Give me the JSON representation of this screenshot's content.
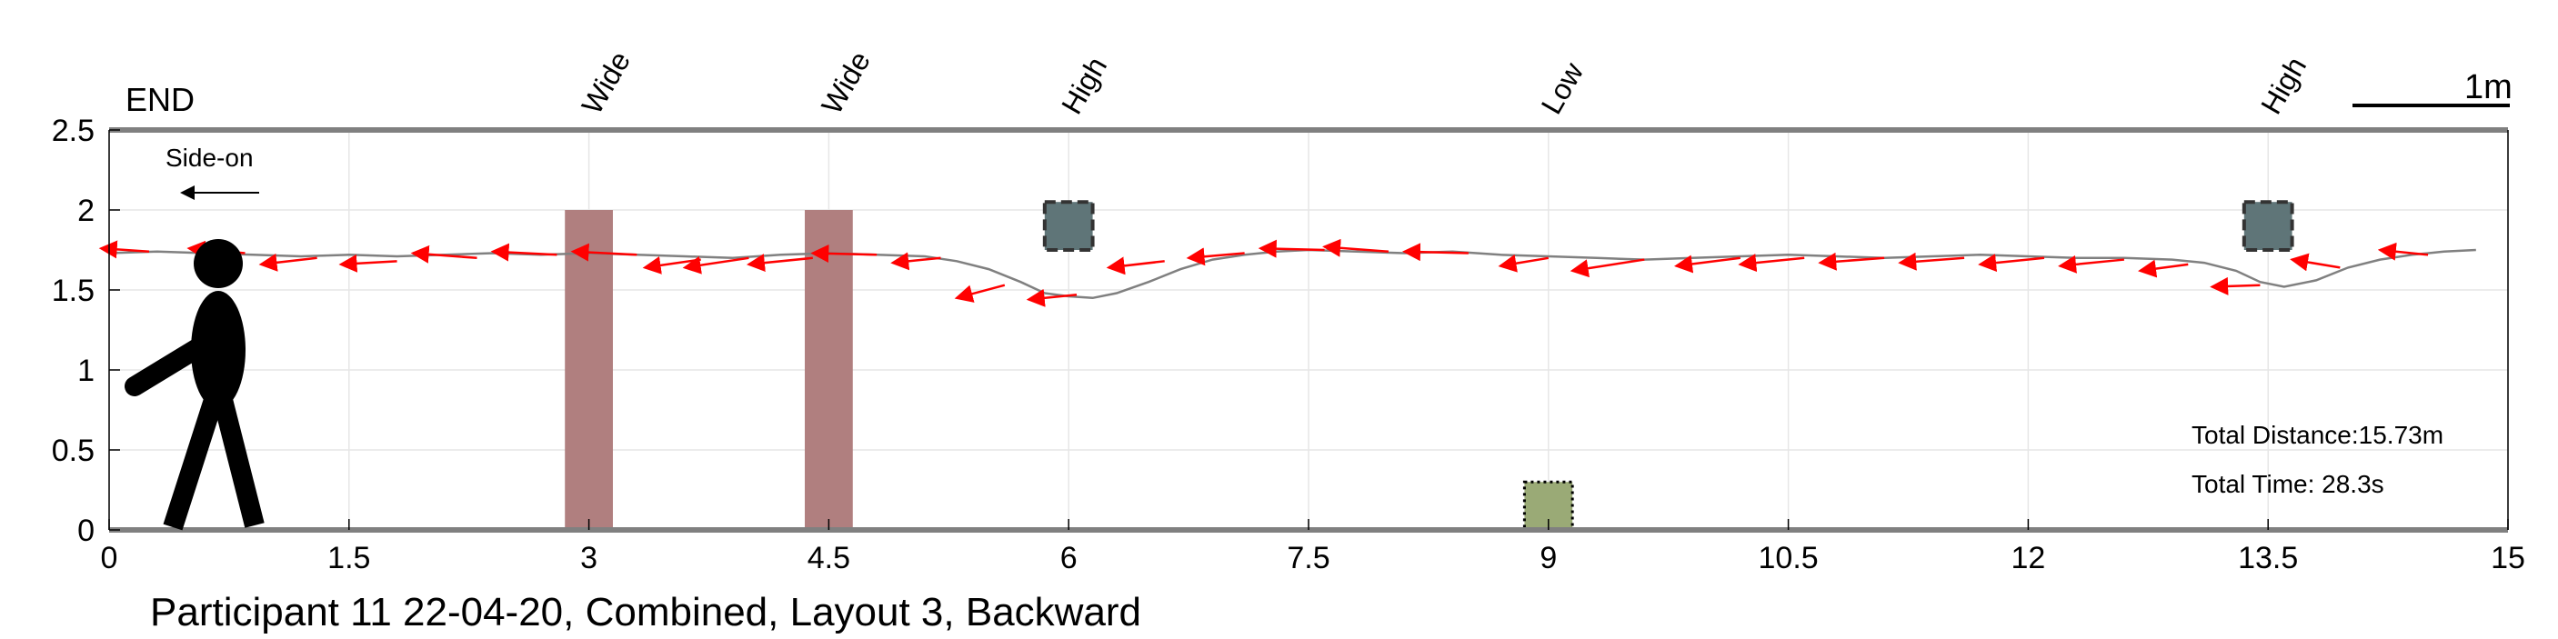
{
  "chart_data": {
    "type": "line",
    "title": "Participant 11 22-04-20, Combined, Layout 3, Backward",
    "xlabel": "",
    "ylabel": "",
    "xlim": [
      0,
      15
    ],
    "ylim": [
      0,
      2.5
    ],
    "x_ticks": [
      0,
      1.5,
      3,
      4.5,
      6,
      7.5,
      9,
      10.5,
      12,
      13.5,
      15
    ],
    "x_tick_labels": [
      "0",
      "1.5",
      "3",
      "4.5",
      "6",
      "7.5",
      "9",
      "10.5",
      "12",
      "13.5",
      "15"
    ],
    "y_ticks": [
      0,
      0.5,
      1,
      1.5,
      2,
      2.5
    ],
    "y_tick_labels": [
      "0",
      "0.5",
      "1",
      "1.5",
      "2",
      "2.5"
    ],
    "grid": true,
    "end_label": "END",
    "view_label": "Side-on",
    "scale_bar_label": "1m",
    "total_distance": "Total Distance:15.73m",
    "total_time": "Total Time: 28.3s",
    "obstacles": [
      {
        "label": "Wide",
        "x": 3.0,
        "type": "wide",
        "x0": 2.85,
        "x1": 3.15,
        "y0": 0,
        "y1": 2.0,
        "color": "#b07f7f"
      },
      {
        "label": "Wide",
        "x": 4.5,
        "type": "wide",
        "x0": 4.35,
        "x1": 4.65,
        "y0": 0,
        "y1": 2.0,
        "color": "#b07f7f"
      },
      {
        "label": "High",
        "x": 6.0,
        "type": "high",
        "x0": 5.85,
        "x1": 6.15,
        "y0": 1.75,
        "y1": 2.05,
        "color": "#5f7578"
      },
      {
        "label": "Low",
        "x": 9.0,
        "type": "low",
        "x0": 8.85,
        "x1": 9.15,
        "y0": 0,
        "y1": 0.3,
        "color": "#9aaa76"
      },
      {
        "label": "High",
        "x": 13.5,
        "type": "high",
        "x0": 13.35,
        "x1": 13.65,
        "y0": 1.75,
        "y1": 2.05,
        "color": "#5f7578"
      }
    ],
    "series": [
      {
        "x": [
          0,
          0.3,
          0.6,
          0.9,
          1.2,
          1.5,
          1.8,
          2.1,
          2.4,
          2.7,
          3.0,
          3.3,
          3.6,
          3.9,
          4.2,
          4.5,
          4.8,
          5.1,
          5.3,
          5.5,
          5.7,
          5.85,
          6.0,
          6.15,
          6.3,
          6.5,
          6.7,
          6.9,
          7.1,
          7.3,
          7.5,
          7.8,
          8.1,
          8.4,
          8.7,
          9.0,
          9.3,
          9.6,
          9.9,
          10.2,
          10.5,
          10.8,
          11.1,
          11.4,
          11.7,
          12.0,
          12.3,
          12.6,
          12.9,
          13.1,
          13.3,
          13.45,
          13.6,
          13.8,
          14.0,
          14.2,
          14.4,
          14.6,
          14.8
        ],
        "y": [
          1.73,
          1.74,
          1.73,
          1.72,
          1.71,
          1.72,
          1.71,
          1.72,
          1.73,
          1.72,
          1.73,
          1.72,
          1.71,
          1.7,
          1.72,
          1.73,
          1.72,
          1.71,
          1.68,
          1.63,
          1.55,
          1.48,
          1.46,
          1.45,
          1.48,
          1.55,
          1.63,
          1.69,
          1.72,
          1.74,
          1.75,
          1.74,
          1.73,
          1.74,
          1.72,
          1.71,
          1.7,
          1.69,
          1.7,
          1.71,
          1.72,
          1.71,
          1.7,
          1.71,
          1.72,
          1.71,
          1.7,
          1.7,
          1.69,
          1.67,
          1.62,
          1.55,
          1.52,
          1.56,
          1.64,
          1.69,
          1.72,
          1.74,
          1.75
        ],
        "color": "#808080"
      }
    ],
    "arrows": [
      {
        "x": 0.25,
        "y": 1.74,
        "dx": -0.3,
        "dy": 0.02
      },
      {
        "x": 0.85,
        "y": 1.73,
        "dx": -0.35,
        "dy": 0.03
      },
      {
        "x": 1.3,
        "y": 1.7,
        "dx": -0.35,
        "dy": -0.04
      },
      {
        "x": 1.8,
        "y": 1.68,
        "dx": -0.35,
        "dy": -0.02
      },
      {
        "x": 2.3,
        "y": 1.7,
        "dx": -0.4,
        "dy": 0.03
      },
      {
        "x": 2.8,
        "y": 1.72,
        "dx": -0.4,
        "dy": 0.02
      },
      {
        "x": 3.3,
        "y": 1.72,
        "dx": -0.4,
        "dy": 0.02
      },
      {
        "x": 3.7,
        "y": 1.69,
        "dx": -0.35,
        "dy": -0.05
      },
      {
        "x": 4.0,
        "y": 1.7,
        "dx": -0.4,
        "dy": -0.06
      },
      {
        "x": 4.4,
        "y": 1.7,
        "dx": -0.4,
        "dy": -0.04
      },
      {
        "x": 4.8,
        "y": 1.72,
        "dx": -0.4,
        "dy": 0.01
      },
      {
        "x": 5.2,
        "y": 1.7,
        "dx": -0.3,
        "dy": -0.03
      },
      {
        "x": 5.6,
        "y": 1.53,
        "dx": -0.3,
        "dy": -0.08
      },
      {
        "x": 6.05,
        "y": 1.47,
        "dx": -0.3,
        "dy": -0.03
      },
      {
        "x": 6.6,
        "y": 1.68,
        "dx": -0.35,
        "dy": -0.04
      },
      {
        "x": 7.1,
        "y": 1.73,
        "dx": -0.35,
        "dy": -0.03
      },
      {
        "x": 7.6,
        "y": 1.75,
        "dx": -0.4,
        "dy": 0.01
      },
      {
        "x": 8.0,
        "y": 1.74,
        "dx": -0.4,
        "dy": 0.03
      },
      {
        "x": 8.5,
        "y": 1.73,
        "dx": -0.4,
        "dy": 0.01
      },
      {
        "x": 9.0,
        "y": 1.7,
        "dx": -0.3,
        "dy": -0.05
      },
      {
        "x": 9.6,
        "y": 1.69,
        "dx": -0.45,
        "dy": -0.07
      },
      {
        "x": 10.2,
        "y": 1.7,
        "dx": -0.4,
        "dy": -0.05
      },
      {
        "x": 10.6,
        "y": 1.7,
        "dx": -0.4,
        "dy": -0.04
      },
      {
        "x": 11.1,
        "y": 1.7,
        "dx": -0.4,
        "dy": -0.03
      },
      {
        "x": 11.6,
        "y": 1.7,
        "dx": -0.4,
        "dy": -0.03
      },
      {
        "x": 12.1,
        "y": 1.7,
        "dx": -0.4,
        "dy": -0.04
      },
      {
        "x": 12.6,
        "y": 1.69,
        "dx": -0.4,
        "dy": -0.04
      },
      {
        "x": 13.0,
        "y": 1.66,
        "dx": -0.3,
        "dy": -0.04
      },
      {
        "x": 13.45,
        "y": 1.53,
        "dx": -0.3,
        "dy": -0.01
      },
      {
        "x": 13.95,
        "y": 1.64,
        "dx": -0.3,
        "dy": 0.05
      },
      {
        "x": 14.5,
        "y": 1.72,
        "dx": -0.3,
        "dy": 0.03
      }
    ]
  }
}
